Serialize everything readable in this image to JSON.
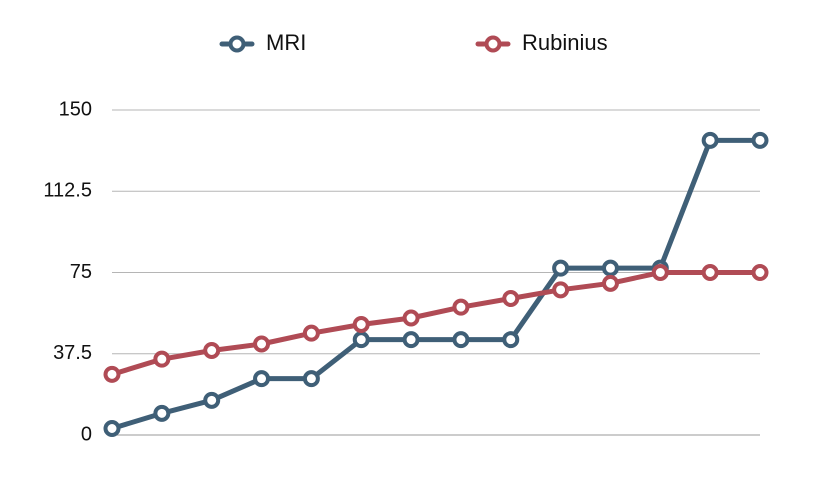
{
  "chart_data": {
    "type": "line",
    "title": "",
    "xlabel": "",
    "ylabel": "",
    "ylim": [
      0,
      150
    ],
    "yticks": [
      "0",
      "37.5",
      "75",
      "112.5",
      "150"
    ],
    "grid": true,
    "legend_position": "top",
    "x": [
      1,
      2,
      3,
      4,
      5,
      6,
      7,
      8,
      9,
      10,
      11,
      12,
      13,
      14
    ],
    "series": [
      {
        "name": "MRI",
        "color": "#3f5f77",
        "values": [
          3,
          10,
          16,
          26,
          26,
          44,
          44,
          44,
          44,
          77,
          77,
          77,
          136,
          136
        ]
      },
      {
        "name": "Rubinius",
        "color": "#b04b55",
        "values": [
          28,
          35,
          39,
          42,
          47,
          51,
          54,
          59,
          63,
          67,
          70,
          75,
          75,
          75
        ]
      }
    ]
  }
}
